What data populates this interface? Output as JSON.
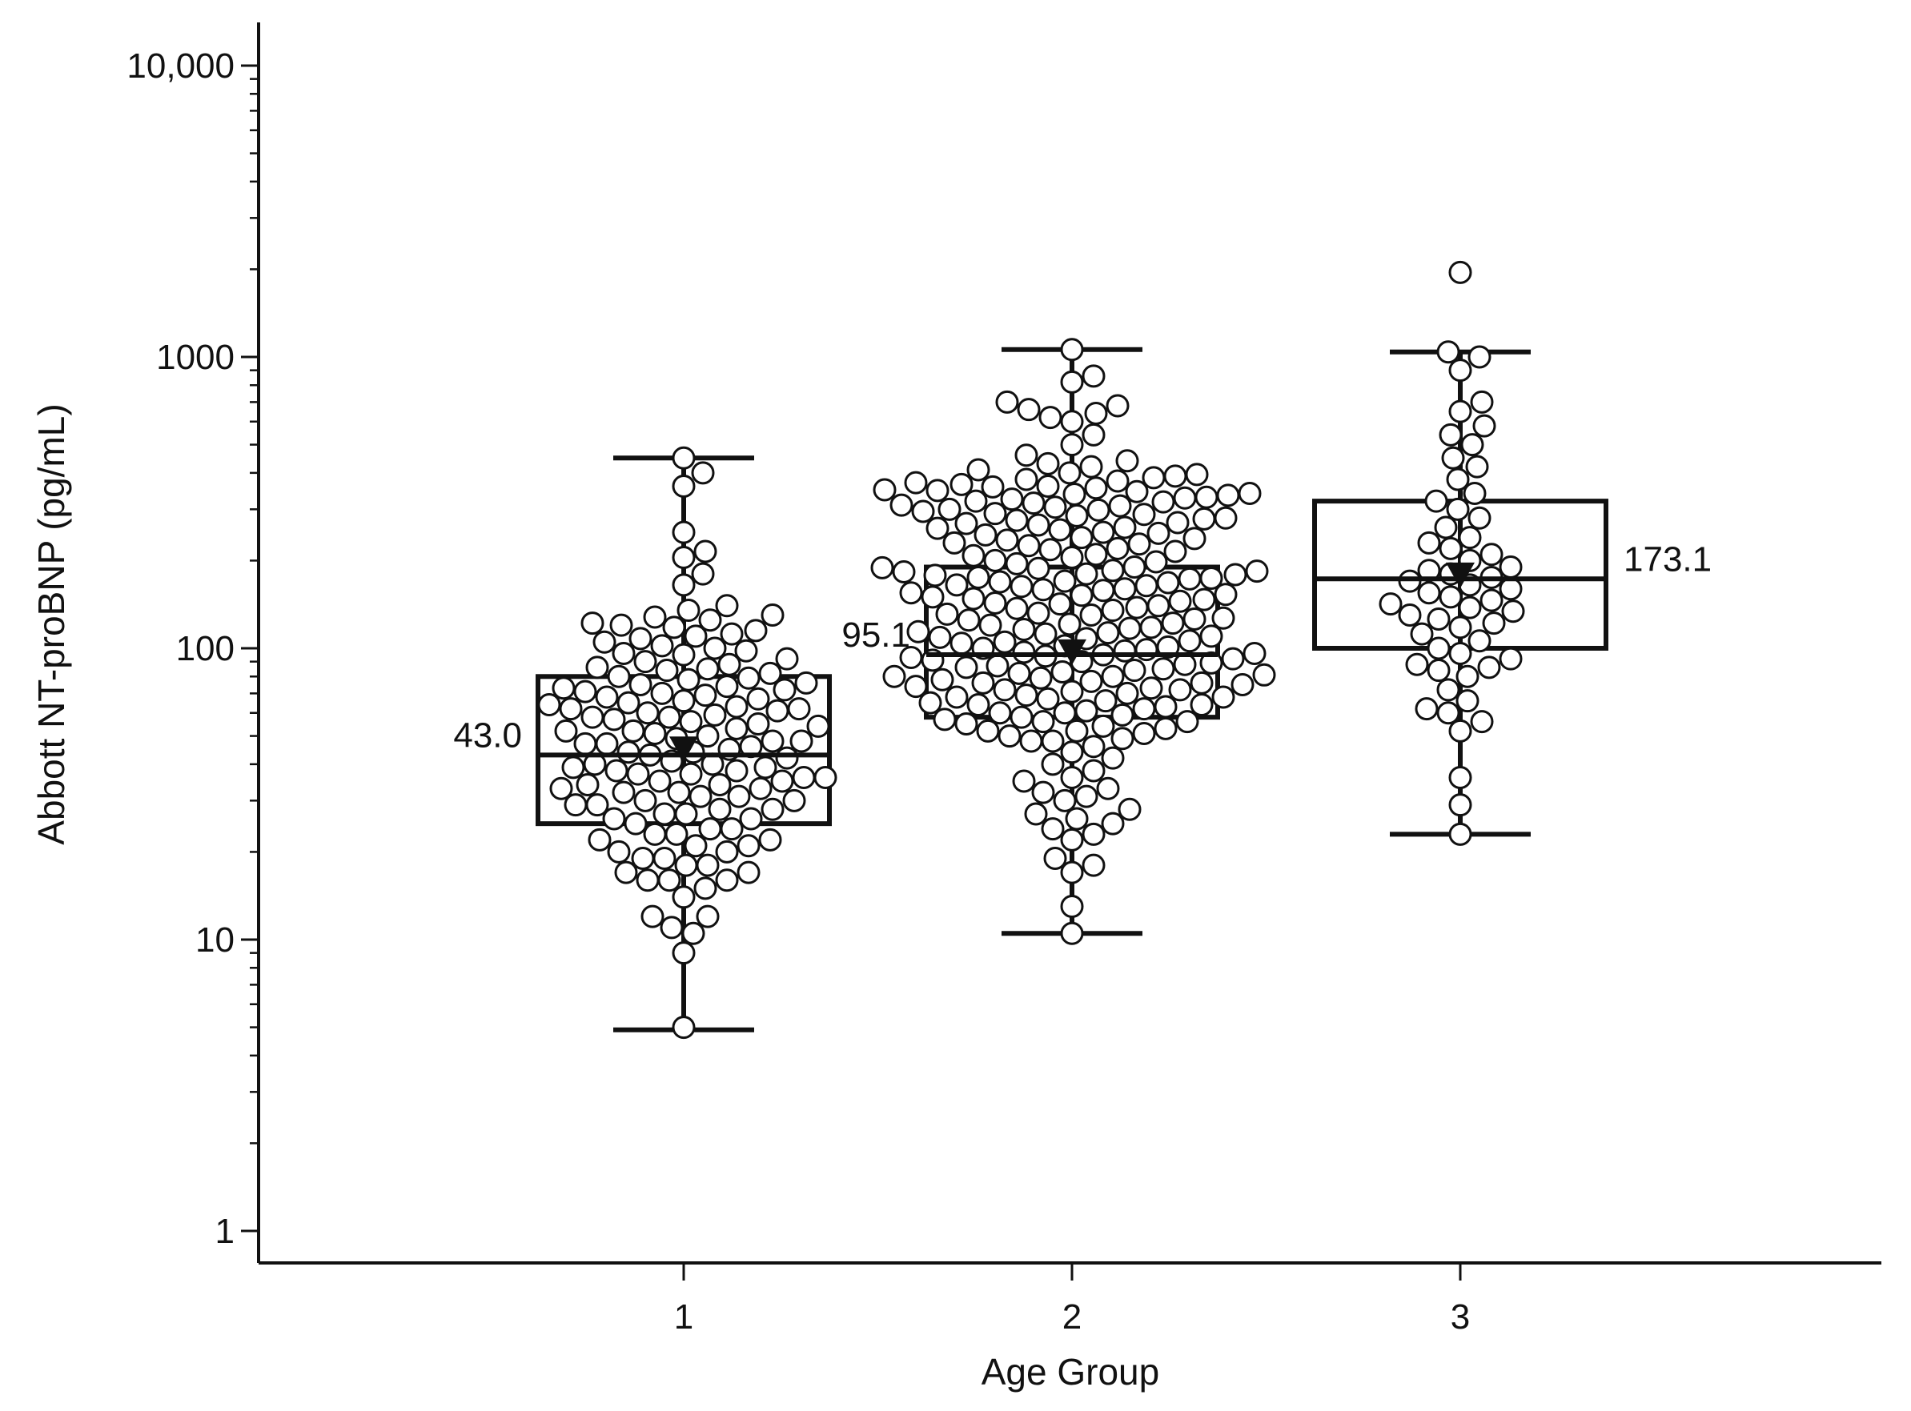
{
  "chart_data": {
    "type": "box",
    "xlabel": "Age Group",
    "ylabel": "Abbott NT-proBNP (pg/mL)",
    "y_scale": "log",
    "ylim": [
      0.8,
      13000
    ],
    "y_ticks": [
      {
        "value": 1,
        "label": "1"
      },
      {
        "value": 10,
        "label": "10"
      },
      {
        "value": 100,
        "label": "100"
      },
      {
        "value": 1000,
        "label": "1000"
      },
      {
        "value": 10000,
        "label": "10,000"
      }
    ],
    "x_ticks": [
      {
        "value": 1,
        "label": "1"
      },
      {
        "value": 2,
        "label": "2"
      },
      {
        "value": 3,
        "label": "3"
      }
    ],
    "groups": [
      {
        "x": 1,
        "whisker_low": 4.9,
        "q1": 25,
        "median": 43.0,
        "q3": 80,
        "whisker_high": 450,
        "mean": 45,
        "median_label": "43.0",
        "label_side": "left",
        "points": [
          5,
          9,
          10.5,
          11,
          12,
          12,
          14,
          15,
          16,
          16,
          17,
          18,
          19,
          20,
          21,
          22,
          23,
          24,
          25,
          26,
          27,
          28,
          29,
          30,
          31,
          32,
          33,
          34,
          35,
          36,
          37,
          38,
          39,
          40,
          41,
          43,
          44,
          45,
          46,
          47,
          48,
          50,
          52,
          54,
          56,
          58,
          60,
          62,
          64,
          66,
          68,
          70,
          73,
          76,
          79,
          82,
          86,
          90,
          95,
          100,
          105,
          110,
          115,
          120,
          125,
          130,
          140,
          165,
          180,
          205,
          215,
          250,
          360,
          400,
          450,
          17,
          19,
          21,
          23,
          26,
          28,
          31,
          33,
          36,
          39,
          42,
          47,
          51,
          55,
          59,
          63,
          67,
          72,
          78,
          85,
          92,
          98,
          108,
          118,
          128,
          22,
          24,
          27,
          29,
          32,
          35,
          38,
          49,
          53,
          57,
          61,
          65,
          71,
          75,
          84,
          96,
          112,
          135,
          16,
          18,
          20,
          30,
          34,
          37,
          40,
          44,
          48,
          52,
          58,
          62,
          69,
          74,
          80,
          88,
          102,
          122
        ]
      },
      {
        "x": 2,
        "whisker_low": 10.5,
        "q1": 58,
        "median": 95.1,
        "q3": 190,
        "whisker_high": 1060,
        "mean": 97,
        "median_label": "95.1",
        "label_side": "left",
        "points": [
          10.5,
          13,
          17,
          18,
          19,
          22,
          23,
          24,
          25,
          26,
          27,
          28,
          30,
          31,
          32,
          33,
          35,
          36,
          38,
          40,
          42,
          44,
          46,
          48,
          50,
          52,
          54,
          56,
          58,
          60,
          62,
          64,
          66,
          68,
          70,
          72,
          74,
          76,
          78,
          80,
          82,
          85,
          88,
          90,
          93,
          95,
          98,
          100,
          104,
          108,
          112,
          116,
          120,
          125,
          130,
          135,
          140,
          145,
          150,
          155,
          160,
          165,
          170,
          175,
          180,
          185,
          190,
          200,
          210,
          220,
          230,
          240,
          250,
          260,
          270,
          280,
          290,
          300,
          310,
          320,
          330,
          340,
          350,
          360,
          370,
          380,
          390,
          400,
          420,
          440,
          460,
          500,
          540,
          600,
          620,
          640,
          660,
          680,
          700,
          820,
          860,
          1060,
          49,
          51,
          53,
          55,
          57,
          59,
          61,
          63,
          65,
          67,
          69,
          71,
          73,
          75,
          77,
          79,
          81,
          83,
          86,
          89,
          92,
          96,
          99,
          102,
          106,
          110,
          114,
          118,
          122,
          127,
          132,
          138,
          143,
          148,
          152,
          158,
          163,
          168,
          173,
          178,
          183,
          188,
          195,
          205,
          215,
          225,
          235,
          245,
          255,
          265,
          275,
          285,
          295,
          305,
          315,
          325,
          335,
          345,
          355,
          365,
          375,
          385,
          395,
          410,
          430,
          48,
          52,
          56,
          60,
          64,
          68,
          72,
          76,
          80,
          84,
          87,
          91,
          94,
          97,
          101,
          105,
          109,
          113,
          117,
          121,
          126,
          131,
          137,
          142,
          147,
          153,
          159,
          164,
          169,
          174,
          179,
          184,
          189,
          198,
          208,
          218,
          228,
          238,
          248,
          258,
          268,
          278,
          288,
          298,
          308,
          318,
          328,
          338,
          348,
          358
        ]
      },
      {
        "x": 3,
        "whisker_low": 23,
        "q1": 100,
        "median": 173.1,
        "q3": 320,
        "whisker_high": 1040,
        "mean": 178,
        "median_label": "173.1",
        "label_side": "right",
        "points": [
          23,
          29,
          36,
          52,
          56,
          60,
          62,
          66,
          72,
          80,
          84,
          86,
          88,
          92,
          96,
          100,
          106,
          112,
          118,
          122,
          126,
          130,
          134,
          138,
          142,
          146,
          150,
          155,
          160,
          165,
          170,
          175,
          180,
          185,
          190,
          200,
          210,
          220,
          230,
          240,
          260,
          280,
          300,
          320,
          340,
          380,
          420,
          450,
          500,
          540,
          580,
          650,
          700,
          900,
          1000,
          1040,
          1950
        ]
      }
    ]
  }
}
